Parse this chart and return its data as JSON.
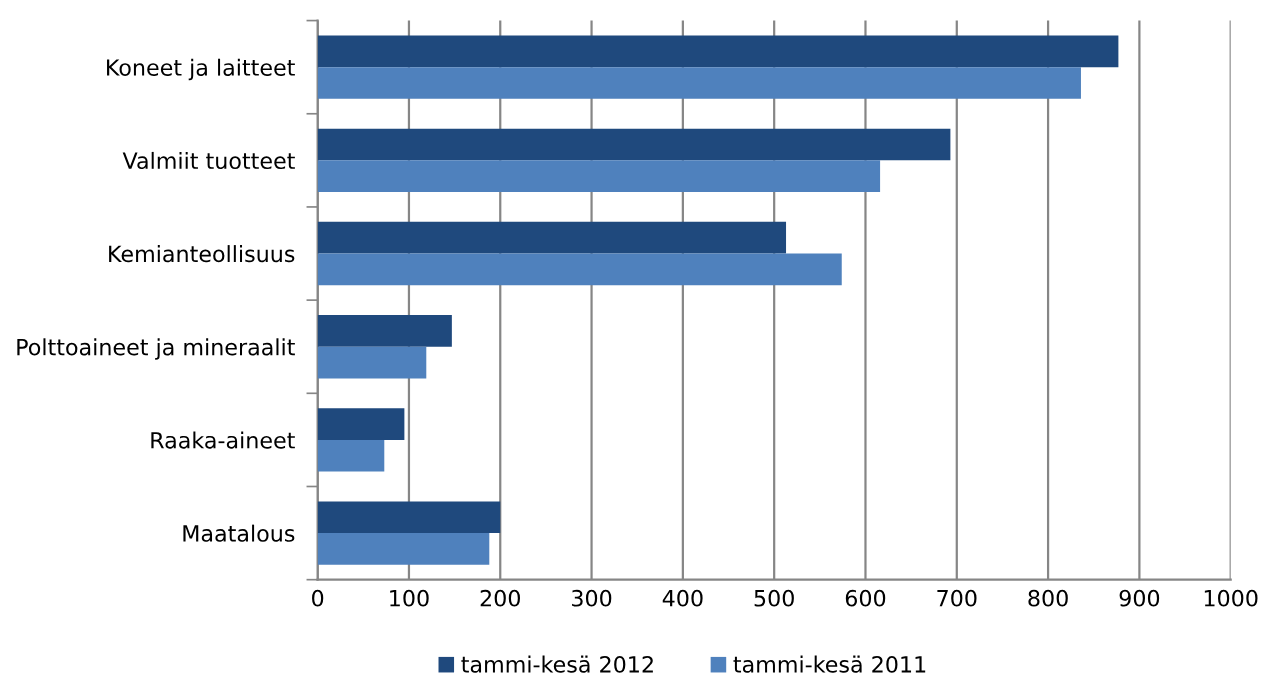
{
  "chart_data": {
    "type": "bar",
    "orientation": "horizontal",
    "categories": [
      "Koneet ja laitteet",
      "Valmiit tuotteet",
      "Kemianteollisuus",
      "Polttoaineet ja mineraalit",
      "Raaka-aineet",
      "Maatalous"
    ],
    "series": [
      {
        "name": "tammi-kesä 2012",
        "color": "#1f497d",
        "values": [
          877,
          693,
          513,
          147,
          95,
          200
        ]
      },
      {
        "name": "tammi-kesä 2011",
        "color": "#4f81bd",
        "values": [
          836,
          616,
          574,
          119,
          73,
          188
        ]
      }
    ],
    "xlim": [
      0,
      1000
    ],
    "xticks": [
      0,
      100,
      200,
      300,
      400,
      500,
      600,
      700,
      800,
      900,
      1000
    ],
    "grid": "x",
    "legend": "bottom"
  }
}
